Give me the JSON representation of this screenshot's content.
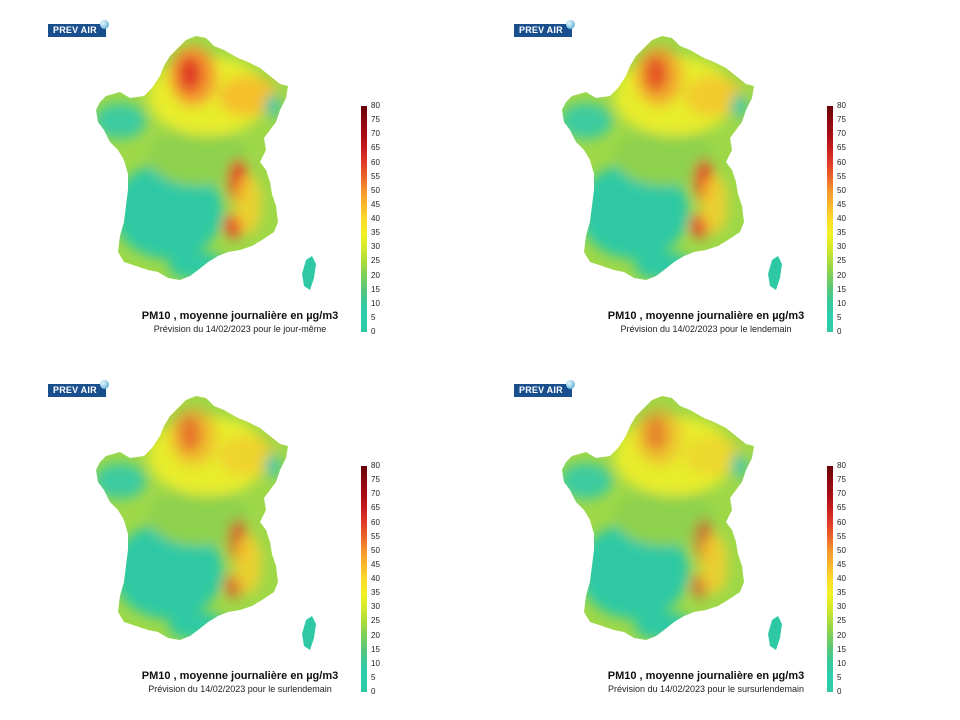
{
  "logo_text": "PREV AIR",
  "colorbar": {
    "ticks": [
      "0",
      "5",
      "10",
      "15",
      "20",
      "25",
      "30",
      "35",
      "40",
      "45",
      "50",
      "55",
      "60",
      "65",
      "70",
      "75",
      "80"
    ]
  },
  "panels": [
    {
      "title": "PM10 , moyenne journalière en µg/m3",
      "subtitle": "Prévision du 14/02/2023 pour le jour-même",
      "pollution_level": 1.0
    },
    {
      "title": "PM10 , moyenne journalière en µg/m3",
      "subtitle": "Prévision du 14/02/2023 pour le lendemain",
      "pollution_level": 0.75
    },
    {
      "title": "PM10 , moyenne journalière en µg/m3",
      "subtitle": "Prévision du 14/02/2023 pour le surlendemain",
      "pollution_level": 0.55
    },
    {
      "title": "PM10 , moyenne journalière en µg/m3",
      "subtitle": "Prévision du 14/02/2023 pour le sursurlendemain",
      "pollution_level": 0.45
    }
  ],
  "colors": {
    "low": "#2ec9a4",
    "mid": "#f2f224",
    "high": "#c81e1e",
    "logo": "#1a4f8e"
  }
}
